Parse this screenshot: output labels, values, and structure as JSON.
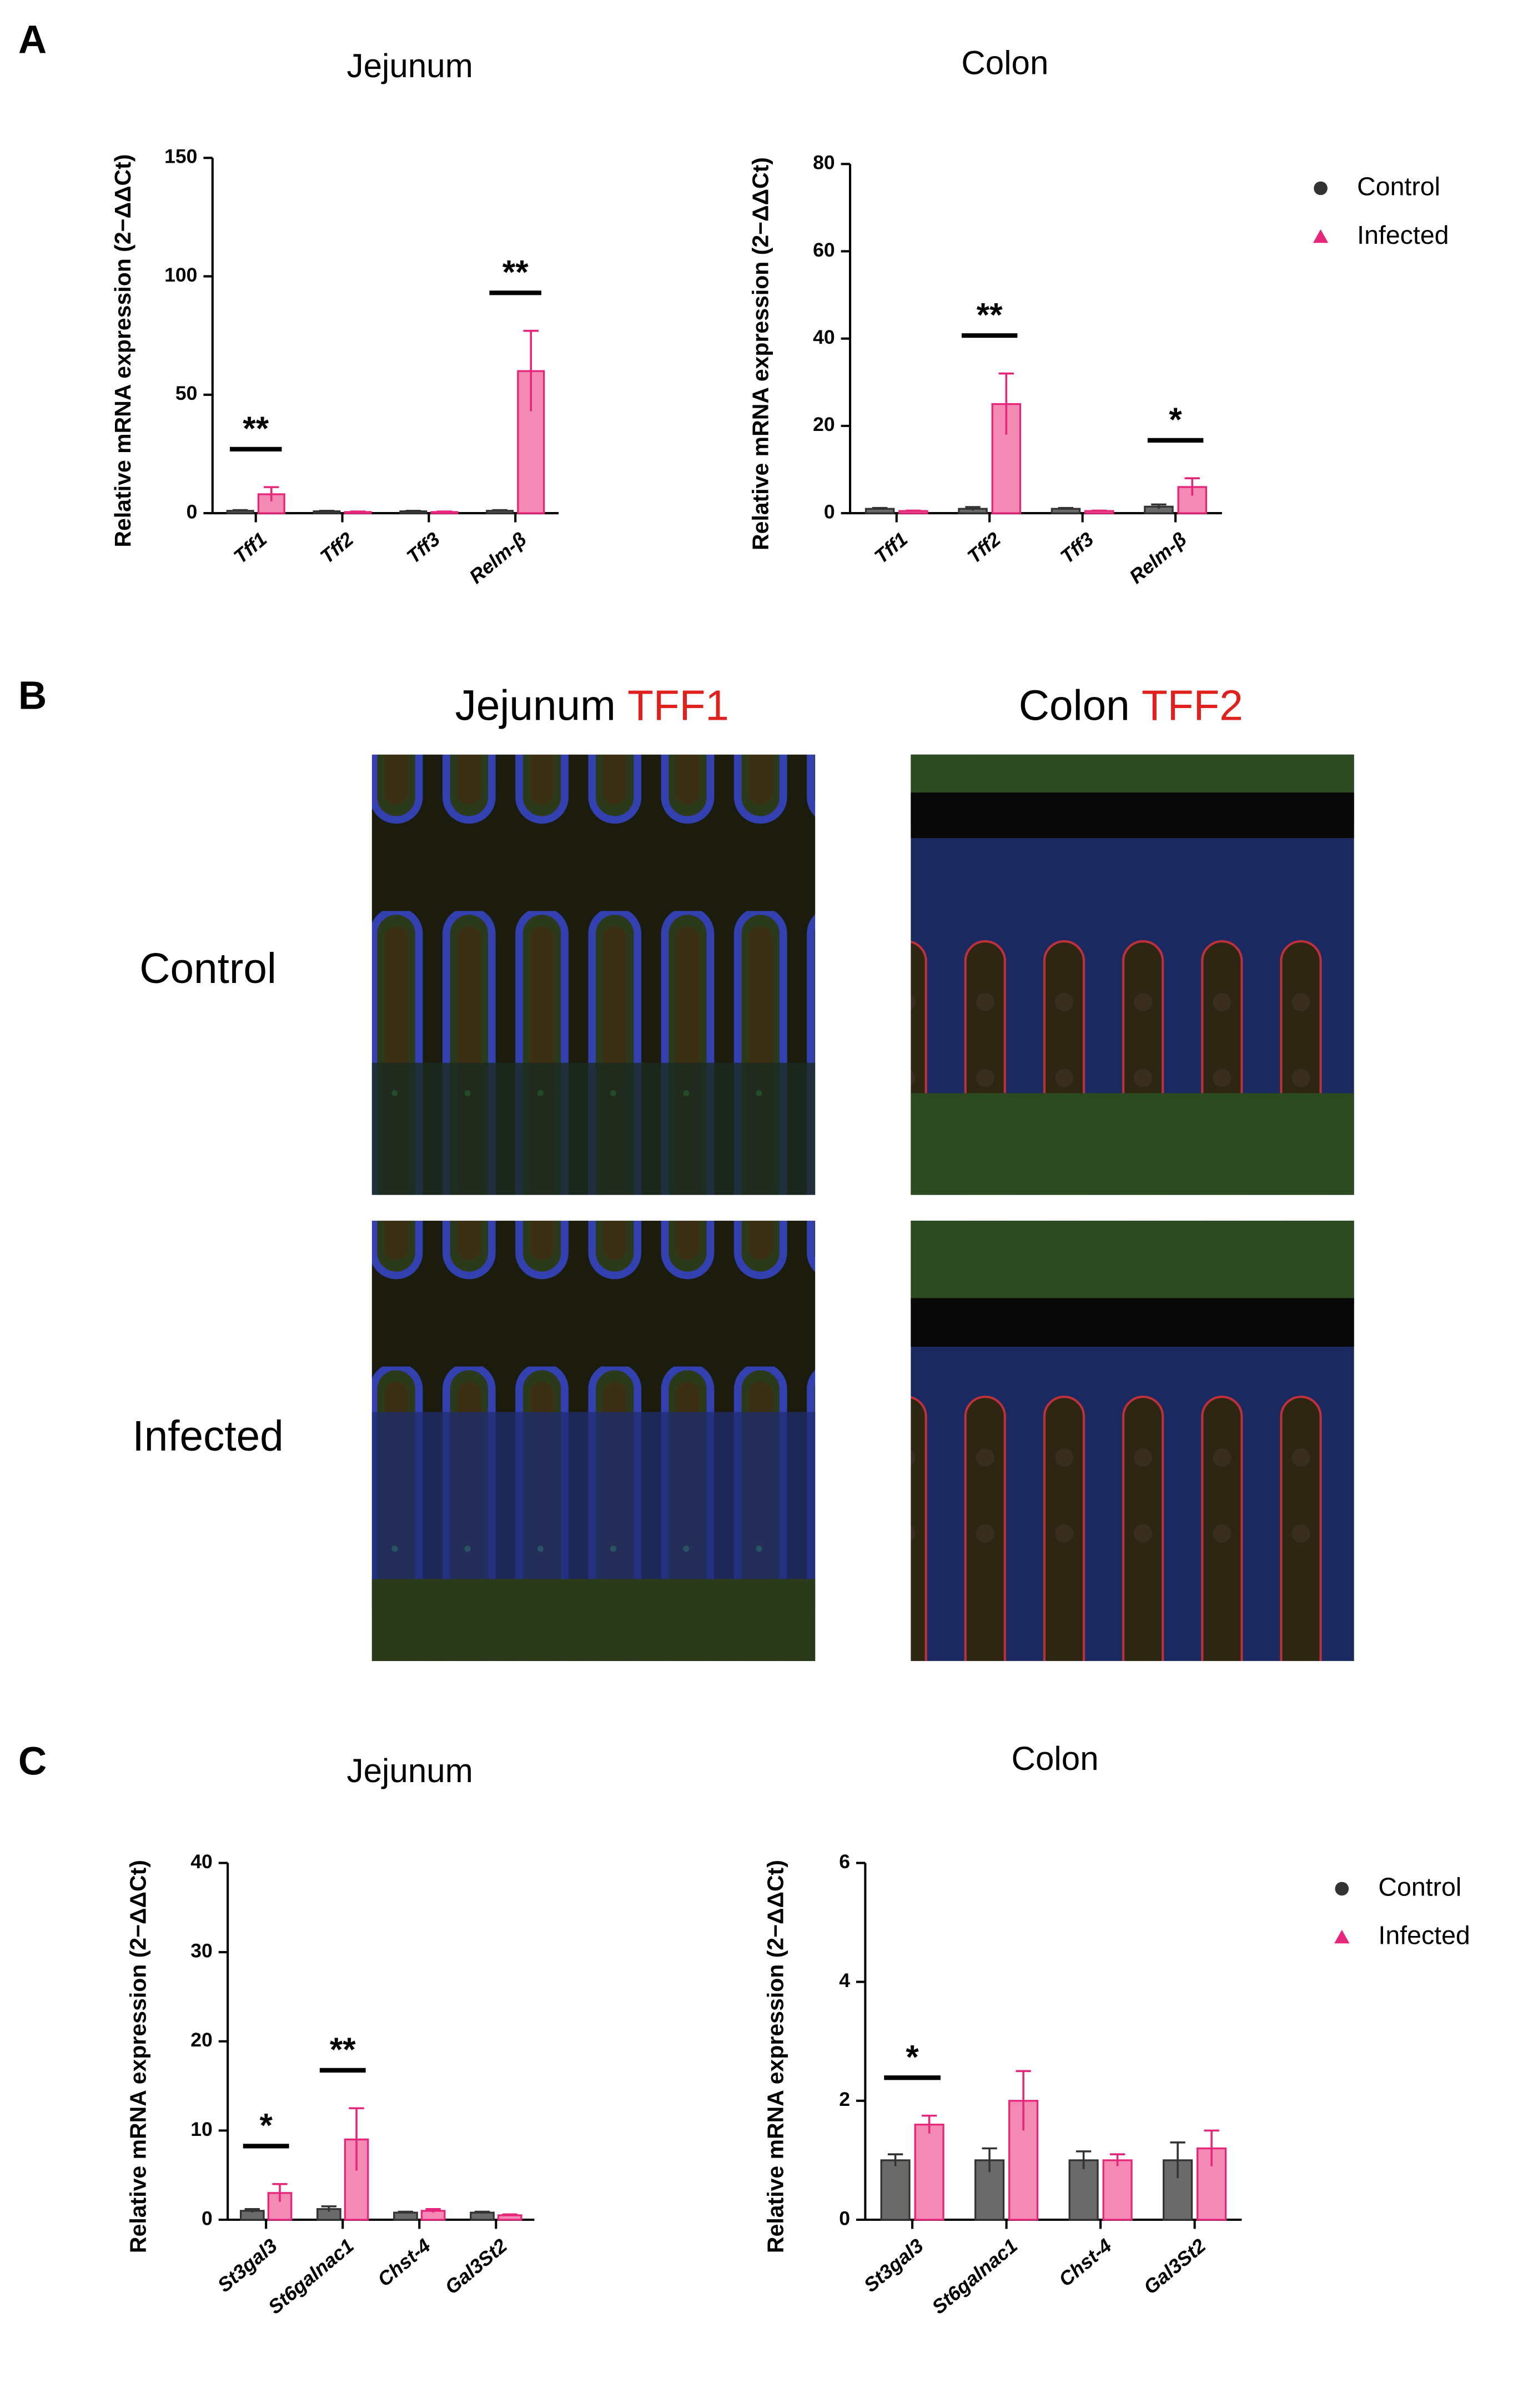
{
  "panels": {
    "a": "A",
    "b": "B",
    "c": "C"
  },
  "images": {
    "columns": [
      {
        "tissue": "Jejunum",
        "stain": "TFF1"
      },
      {
        "tissue": "Colon",
        "stain": "TFF2"
      }
    ],
    "rows": [
      "Control",
      "Infected"
    ]
  },
  "chart_data": [
    {
      "type": "bar",
      "title": "Jejunum",
      "y_label": "Relative mRNA expression (2−ΔΔCt)",
      "categories": [
        "Tff1",
        "Tff2",
        "Tff3",
        "Relm-β"
      ],
      "series": [
        {
          "name": "Control",
          "color": "#333333",
          "marker": "circle",
          "values": [
            1,
            0.8,
            0.8,
            1
          ],
          "errors": [
            0.3,
            0.2,
            0.2,
            0.3
          ]
        },
        {
          "name": "Infected",
          "color": "#e6267a",
          "marker": "triangle",
          "values": [
            8,
            0.5,
            0.5,
            60
          ],
          "errors": [
            3,
            0.2,
            0.2,
            17
          ]
        }
      ],
      "significance": [
        "**",
        null,
        null,
        "**"
      ],
      "ylim": [
        0,
        150
      ],
      "yticks": [
        0,
        50,
        100,
        150
      ],
      "legend": false
    },
    {
      "type": "bar",
      "title": "Colon",
      "y_label": "Relative mRNA expression (2−ΔΔCt)",
      "categories": [
        "Tff1",
        "Tff2",
        "Tff3",
        "Relm-β"
      ],
      "series": [
        {
          "name": "Control",
          "color": "#333333",
          "marker": "circle",
          "values": [
            1,
            1,
            1,
            1.5
          ],
          "errors": [
            0.2,
            0.4,
            0.2,
            0.5
          ]
        },
        {
          "name": "Infected",
          "color": "#e6267a",
          "marker": "triangle",
          "values": [
            0.5,
            25,
            0.5,
            6
          ],
          "errors": [
            0.1,
            7,
            0.1,
            2
          ]
        }
      ],
      "significance": [
        null,
        "**",
        null,
        "*"
      ],
      "ylim": [
        0,
        80
      ],
      "yticks": [
        0,
        20,
        40,
        60,
        80
      ],
      "legend": true
    },
    {
      "type": "bar",
      "title": "Jejunum",
      "y_label": "Relative mRNA expression (2−ΔΔCt)",
      "categories": [
        "St3gal3",
        "St6galnac1",
        "Chst-4",
        "Gal3St2"
      ],
      "series": [
        {
          "name": "Control",
          "color": "#333333",
          "marker": "circle",
          "values": [
            1,
            1.2,
            0.8,
            0.8
          ],
          "errors": [
            0.2,
            0.3,
            0.1,
            0.1
          ]
        },
        {
          "name": "Infected",
          "color": "#e6267a",
          "marker": "triangle",
          "values": [
            3,
            9,
            1,
            0.5
          ],
          "errors": [
            1,
            3.5,
            0.2,
            0.1
          ]
        }
      ],
      "significance": [
        "*",
        "**",
        null,
        null
      ],
      "ylim": [
        0,
        40
      ],
      "yticks": [
        0,
        10,
        20,
        30,
        40
      ],
      "legend": false
    },
    {
      "type": "bar",
      "title": "Colon",
      "y_label": "Relative mRNA expression (2−ΔΔCt)",
      "categories": [
        "St3gal3",
        "St6galnac1",
        "Chst-4",
        "Gal3St2"
      ],
      "series": [
        {
          "name": "Control",
          "color": "#333333",
          "marker": "circle",
          "values": [
            1,
            1,
            1,
            1
          ],
          "errors": [
            0.1,
            0.2,
            0.15,
            0.3
          ]
        },
        {
          "name": "Infected",
          "color": "#e6267a",
          "marker": "triangle",
          "values": [
            1.6,
            2,
            1,
            1.2
          ],
          "errors": [
            0.15,
            0.5,
            0.1,
            0.3
          ]
        }
      ],
      "significance": [
        "*",
        null,
        null,
        null
      ],
      "ylim": [
        0,
        6
      ],
      "yticks": [
        0,
        2,
        4,
        6
      ],
      "legend": true
    }
  ]
}
